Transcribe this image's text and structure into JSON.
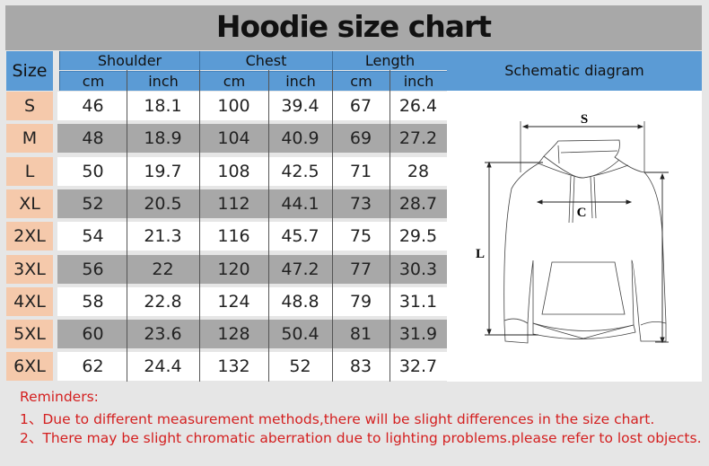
{
  "title": "Hoodie size chart",
  "header": {
    "size": "Size",
    "groups": [
      "Shoulder",
      "Chest",
      "Length"
    ],
    "units": [
      "cm",
      "inch",
      "cm",
      "inch",
      "cm",
      "inch"
    ],
    "schematic": "Schematic diagram"
  },
  "rows": [
    {
      "size": "S",
      "values": [
        "46",
        "18.1",
        "100",
        "39.4",
        "67",
        "26.4"
      ]
    },
    {
      "size": "M",
      "values": [
        "48",
        "18.9",
        "104",
        "40.9",
        "69",
        "27.2"
      ]
    },
    {
      "size": "L",
      "values": [
        "50",
        "19.7",
        "108",
        "42.5",
        "71",
        "28"
      ]
    },
    {
      "size": "XL",
      "values": [
        "52",
        "20.5",
        "112",
        "44.1",
        "73",
        "28.7"
      ]
    },
    {
      "size": "2XL",
      "values": [
        "54",
        "21.3",
        "116",
        "45.7",
        "75",
        "29.5"
      ]
    },
    {
      "size": "3XL",
      "values": [
        "56",
        "22",
        "120",
        "47.2",
        "77",
        "30.3"
      ]
    },
    {
      "size": "4XL",
      "values": [
        "58",
        "22.8",
        "124",
        "48.8",
        "79",
        "31.1"
      ]
    },
    {
      "size": "5XL",
      "values": [
        "60",
        "23.6",
        "128",
        "50.4",
        "81",
        "31.9"
      ]
    },
    {
      "size": "6XL",
      "values": [
        "62",
        "24.4",
        "132",
        "52",
        "83",
        "32.7"
      ]
    }
  ],
  "diagram": {
    "shoulder_label": "S",
    "chest_label": "C",
    "length_label": "L"
  },
  "reminders": {
    "heading": "Reminders:",
    "items": [
      "1、Due to different measurement methods,there will be slight differences in the size chart.",
      "2、There may be slight chromatic aberration due to lighting problems.please refer to lost objects."
    ]
  },
  "colors": {
    "header_blue": "#5b9bd5",
    "size_peach": "#f5c9ab",
    "row_gray": "#a8a8a8",
    "reminder_red": "#d42020"
  }
}
